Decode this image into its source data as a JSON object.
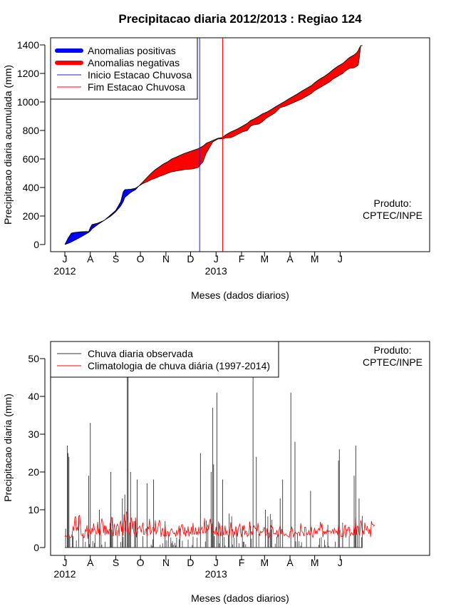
{
  "title": "Precipitacao diaria 2012/2013 : Regiao 124",
  "chart_data": [
    {
      "type": "area",
      "ylabel": "Precipitacao diaria acumulada (mm)",
      "xlabel": "Meses (dados diarios)",
      "ylim": [
        0,
        1400
      ],
      "yticks": [
        0,
        200,
        400,
        600,
        800,
        1000,
        1200,
        1400
      ],
      "xticks": [
        {
          "label": "J",
          "day": 0
        },
        {
          "label": "A",
          "day": 31
        },
        {
          "label": "S",
          "day": 62
        },
        {
          "label": "O",
          "day": 92
        },
        {
          "label": "N",
          "day": 123
        },
        {
          "label": "D",
          "day": 153
        },
        {
          "label": "J",
          "day": 184
        },
        {
          "label": "F",
          "day": 215
        },
        {
          "label": "M",
          "day": 243
        },
        {
          "label": "A",
          "day": 274
        },
        {
          "label": "M",
          "day": 304
        },
        {
          "label": "J",
          "day": 335
        }
      ],
      "year_labels": [
        {
          "label": "2012",
          "day": 0
        },
        {
          "label": "2013",
          "day": 184
        }
      ],
      "legend": [
        {
          "label": "Anomalias positivas",
          "color": "#0000ff"
        },
        {
          "label": "Anomalias negativas",
          "color": "#ff0000"
        },
        {
          "label": "Inicio Estacao Chuvosa",
          "color": "#0000ff"
        },
        {
          "label": "Fim Estacao Chuvosa",
          "color": "#ff0000"
        }
      ],
      "legend_position": "top-left",
      "credit": [
        "Produto:",
        "CPTEC/INPE"
      ],
      "start_rainy_season_day": 164,
      "end_rainy_season_day": 192,
      "observed_cumulative": [
        [
          0,
          0
        ],
        [
          4,
          45
        ],
        [
          8,
          80
        ],
        [
          12,
          85
        ],
        [
          20,
          90
        ],
        [
          29,
          92
        ],
        [
          31,
          120
        ],
        [
          33,
          140
        ],
        [
          40,
          150
        ],
        [
          48,
          170
        ],
        [
          56,
          210
        ],
        [
          62,
          240
        ],
        [
          68,
          300
        ],
        [
          71,
          370
        ],
        [
          73,
          385
        ],
        [
          80,
          388
        ],
        [
          86,
          395
        ],
        [
          90,
          410
        ],
        [
          95,
          428
        ],
        [
          100,
          440
        ],
        [
          105,
          455
        ],
        [
          110,
          465
        ],
        [
          115,
          478
        ],
        [
          120,
          488
        ],
        [
          125,
          500
        ],
        [
          130,
          510
        ],
        [
          135,
          515
        ],
        [
          140,
          520
        ],
        [
          145,
          525
        ],
        [
          150,
          528
        ],
        [
          155,
          530
        ],
        [
          162,
          540
        ],
        [
          168,
          580
        ],
        [
          172,
          640
        ],
        [
          176,
          680
        ],
        [
          180,
          720
        ],
        [
          186,
          740
        ],
        [
          192,
          742
        ],
        [
          196,
          748
        ],
        [
          202,
          750
        ],
        [
          206,
          760
        ],
        [
          210,
          772
        ],
        [
          216,
          790
        ],
        [
          222,
          800
        ],
        [
          226,
          830
        ],
        [
          230,
          840
        ],
        [
          236,
          845
        ],
        [
          240,
          860
        ],
        [
          246,
          890
        ],
        [
          252,
          910
        ],
        [
          256,
          925
        ],
        [
          262,
          960
        ],
        [
          268,
          970
        ],
        [
          272,
          980
        ],
        [
          278,
          995
        ],
        [
          284,
          1010
        ],
        [
          288,
          1020
        ],
        [
          294,
          1040
        ],
        [
          300,
          1060
        ],
        [
          304,
          1080
        ],
        [
          310,
          1100
        ],
        [
          316,
          1120
        ],
        [
          322,
          1140
        ],
        [
          326,
          1160
        ],
        [
          332,
          1180
        ],
        [
          338,
          1200
        ],
        [
          342,
          1220
        ],
        [
          346,
          1235
        ],
        [
          352,
          1240
        ],
        [
          355,
          1250
        ],
        [
          357,
          1260
        ],
        [
          358,
          1300
        ],
        [
          360,
          1395
        ],
        [
          362,
          1395
        ]
      ],
      "climatology_cumulative": [
        [
          0,
          0
        ],
        [
          4,
          8
        ],
        [
          8,
          18
        ],
        [
          12,
          30
        ],
        [
          20,
          55
        ],
        [
          29,
          85
        ],
        [
          31,
          95
        ],
        [
          33,
          110
        ],
        [
          40,
          140
        ],
        [
          48,
          170
        ],
        [
          56,
          200
        ],
        [
          62,
          230
        ],
        [
          68,
          270
        ],
        [
          71,
          300
        ],
        [
          73,
          330
        ],
        [
          80,
          365
        ],
        [
          86,
          385
        ],
        [
          90,
          410
        ],
        [
          95,
          440
        ],
        [
          100,
          470
        ],
        [
          105,
          500
        ],
        [
          110,
          525
        ],
        [
          115,
          545
        ],
        [
          120,
          565
        ],
        [
          125,
          580
        ],
        [
          130,
          600
        ],
        [
          135,
          612
        ],
        [
          140,
          625
        ],
        [
          145,
          638
        ],
        [
          150,
          648
        ],
        [
          155,
          658
        ],
        [
          162,
          672
        ],
        [
          168,
          690
        ],
        [
          172,
          710
        ],
        [
          176,
          720
        ],
        [
          180,
          730
        ],
        [
          186,
          745
        ],
        [
          192,
          752
        ],
        [
          196,
          770
        ],
        [
          202,
          790
        ],
        [
          206,
          800
        ],
        [
          210,
          810
        ],
        [
          216,
          830
        ],
        [
          222,
          850
        ],
        [
          226,
          870
        ],
        [
          230,
          880
        ],
        [
          236,
          900
        ],
        [
          240,
          915
        ],
        [
          246,
          930
        ],
        [
          252,
          950
        ],
        [
          256,
          965
        ],
        [
          262,
          985
        ],
        [
          268,
          1005
        ],
        [
          272,
          1020
        ],
        [
          278,
          1040
        ],
        [
          284,
          1060
        ],
        [
          288,
          1075
        ],
        [
          294,
          1095
        ],
        [
          300,
          1115
        ],
        [
          304,
          1135
        ],
        [
          310,
          1160
        ],
        [
          316,
          1180
        ],
        [
          322,
          1205
        ],
        [
          326,
          1225
        ],
        [
          332,
          1250
        ],
        [
          338,
          1270
        ],
        [
          342,
          1290
        ],
        [
          346,
          1310
        ],
        [
          352,
          1330
        ],
        [
          355,
          1345
        ],
        [
          357,
          1360
        ],
        [
          358,
          1375
        ],
        [
          360,
          1395
        ],
        [
          362,
          1395
        ]
      ]
    },
    {
      "type": "line",
      "ylabel": "Precipitacao diaria (mm)",
      "xlabel": "Meses (dados diarios)",
      "ylim": [
        0,
        50
      ],
      "yticks": [
        0,
        10,
        20,
        30,
        40,
        50
      ],
      "legend": [
        {
          "label": "Chuva diaria observada",
          "color": "#333333"
        },
        {
          "label": "Climatologia de chuva diária (1997-2014)",
          "color": "#ff0000"
        }
      ],
      "legend_position": "top-left",
      "credit": [
        "Produto:",
        "CPTEC/INPE"
      ],
      "observed_peaks": [
        [
          1,
          5
        ],
        [
          3,
          27
        ],
        [
          4,
          25
        ],
        [
          5,
          24
        ],
        [
          10,
          3
        ],
        [
          29,
          19
        ],
        [
          31,
          33
        ],
        [
          42,
          10
        ],
        [
          56,
          20
        ],
        [
          58,
          8
        ],
        [
          70,
          13
        ],
        [
          73,
          14
        ],
        [
          76,
          45
        ],
        [
          77,
          45
        ],
        [
          80,
          20
        ],
        [
          85,
          7
        ],
        [
          88,
          18
        ],
        [
          95,
          3
        ],
        [
          100,
          17
        ],
        [
          108,
          18
        ],
        [
          122,
          7
        ],
        [
          140,
          5
        ],
        [
          165,
          25
        ],
        [
          174,
          5
        ],
        [
          178,
          20
        ],
        [
          180,
          37
        ],
        [
          181,
          22
        ],
        [
          182,
          3
        ],
        [
          185,
          41
        ],
        [
          192,
          18
        ],
        [
          200,
          9
        ],
        [
          209,
          5
        ],
        [
          229,
          45
        ],
        [
          233,
          24
        ],
        [
          244,
          10
        ],
        [
          248,
          4
        ],
        [
          262,
          13
        ],
        [
          265,
          18
        ],
        [
          275,
          41
        ],
        [
          280,
          28
        ],
        [
          299,
          15
        ],
        [
          320,
          6
        ],
        [
          333,
          23
        ],
        [
          334,
          26
        ],
        [
          338,
          4
        ],
        [
          352,
          19
        ],
        [
          354,
          27
        ],
        [
          358,
          13
        ]
      ],
      "climatology": [
        2.9,
        3.2,
        3.0,
        2.8,
        3.4,
        3.3,
        2.6,
        2.7,
        2.8,
        3.7,
        5.6,
        4.4,
        7.6,
        8.3,
        4.4,
        5.4,
        4.5,
        8.1,
        8.6,
        5.8,
        3.2,
        3.2,
        3.3,
        2.6,
        2.8,
        4.8,
        4.3,
        5.9,
        2.3,
        5.0,
        4.5,
        3.9,
        3.6,
        5.2,
        4.1,
        6.4,
        4.8,
        4.7,
        3.6,
        3.6,
        6.8,
        3.7,
        5.6,
        3.3,
        6.3,
        7.7,
        6.8,
        3.8,
        5.9,
        3.3,
        5.8,
        3.5,
        4.8,
        3.5,
        4.8,
        4.6,
        8.2,
        7.8,
        4.6,
        3.0,
        6.3,
        4.9,
        3.2,
        5.7,
        6.2,
        5.6,
        3.0,
        6.3,
        7.1,
        4.2,
        6.8,
        3.2,
        8.8,
        5.8,
        4.2,
        9.5,
        8.9,
        6.4,
        3.6,
        3.4,
        7.6,
        7.8,
        4.8,
        7.0,
        3.8,
        3.5,
        8.0,
        2.7,
        4.5,
        5.1,
        5.3,
        5.7,
        5.0,
        4.0,
        5.5,
        6.6,
        3.5,
        3.5,
        4.5,
        5.1,
        3.1,
        5.4,
        5.0,
        7.6,
        3.5,
        3.9,
        4.7,
        5.3,
        5.5,
        4.2,
        7.2,
        3.5,
        4.2,
        4.7,
        6.2,
        7.3,
        6.4,
        2.8,
        4.4,
        5.2,
        3.2,
        3.0,
        6.1,
        2.9,
        3.4,
        4.3,
        4.0,
        2.9,
        4.0,
        4.7,
        5.0,
        4.3,
        3.8,
        3.6,
        3.9,
        2.9,
        4.6,
        3.4,
        3.9,
        5.8,
        2.9,
        5.0,
        6.0,
        6.1,
        4.2,
        3.4,
        5.4,
        2.9,
        4.5,
        3.9,
        5.6,
        2.9,
        4.1,
        3.7,
        5.5,
        3.3,
        6.5,
        3.5,
        3.6,
        5.3,
        3.4,
        4.3,
        3.3,
        5.5,
        3.7,
        4.3,
        4.9,
        5.4,
        3.8,
        3.9,
        7.8,
        4.0,
        3.9,
        4.8,
        6.1,
        4.7,
        6.6,
        7.6,
        5.6,
        4.2,
        3.9,
        4.5,
        3.9,
        3.5,
        5.5,
        3.5,
        3.9,
        2.9,
        6.5,
        4.5,
        3.0,
        5.7,
        5.8,
        3.4,
        3.4,
        5.8,
        3.3,
        4.5,
        3.5,
        3.2,
        2.8,
        4.8,
        6.7,
        4.3,
        4.9,
        2.6,
        4.3,
        3.3,
        5.6,
        4.8,
        2.9,
        5.0,
        5.7,
        6.2,
        3.9,
        2.7,
        5.8,
        4.5,
        5.9,
        3.3,
        4.4,
        4.3,
        2.9,
        3.3,
        3.4,
        6.9,
        3.3,
        4.3,
        3.3,
        5.1,
        5.8,
        5.3,
        5.0,
        5.2,
        4.3,
        6.5,
        4.2,
        3.1,
        4.3,
        3.9,
        4.2,
        4.1,
        5.2,
        5.3,
        3.1,
        3.4,
        5.1,
        2.7,
        2.5,
        2.8,
        4.9,
        5.8,
        5.2,
        5.4,
        3.6,
        3.7,
        3.8,
        3.5,
        4.6,
        2.7,
        3.9,
        5.1,
        5.8,
        3.6,
        4.9,
        3.9,
        3.8,
        3.1,
        3.4,
        3.6,
        3.2,
        3.0,
        3.0,
        2.7,
        4.2,
        4.2,
        5.4,
        4.8,
        2.7,
        3.4,
        4.2,
        3.9,
        3.7,
        3.7,
        4.0,
        4.1,
        3.0,
        6.4,
        4.5,
        4.1,
        3.8,
        3.0,
        5.4,
        5.4,
        3.8,
        3.4,
        3.7,
        4.6,
        3.4,
        3.8,
        5.5,
        3.0,
        2.7,
        4.4,
        5.2,
        3.6,
        4.5,
        3.6,
        4.8,
        5.1,
        4.6,
        6.8,
        5.1,
        6.4,
        2.7,
        4.4,
        3.6,
        4.2,
        3.6,
        4.6,
        4.0,
        4.4,
        4.3,
        4.4,
        3.8,
        4.3,
        4.8,
        3.6,
        5.1,
        4.5,
        3.9,
        4.4,
        3.3,
        5.9,
        4.5,
        4.5,
        2.9,
        3.0,
        2.8,
        3.1,
        5.4,
        6.0,
        2.6,
        4.8,
        4.5,
        5.4,
        5.4,
        3.0,
        3.7,
        4.0,
        3.5,
        3.3,
        5.7,
        3.6,
        7.7,
        3.4,
        5.7,
        5.5,
        3.1,
        3.8,
        7.2,
        6.3,
        3.7,
        4.5,
        3.4,
        6.6,
        4.7,
        4.6,
        5.7,
        4.4,
        3.6,
        4.9,
        2.8,
        7.0,
        6.1,
        6.1,
        5.7,
        6.0
      ]
    }
  ]
}
